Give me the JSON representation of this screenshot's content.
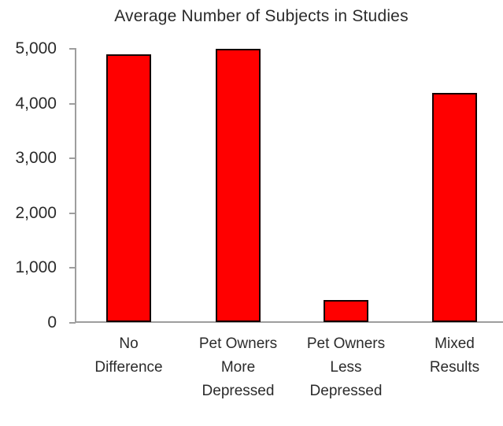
{
  "chart": {
    "title": "Average Number of Subjects in Studies"
  },
  "chart_data": {
    "type": "bar",
    "title": "Average Number of Subjects in Studies",
    "categories": [
      "No Difference",
      "Pet Owners More Depressed",
      "Pet Owners Less Depressed",
      "Mixed Results"
    ],
    "values": [
      4880,
      4980,
      400,
      4180
    ],
    "xlabel": "",
    "ylabel": "",
    "ylim": [
      0,
      5000
    ],
    "y_ticks": [
      0,
      1000,
      2000,
      3000,
      4000,
      5000
    ],
    "y_tick_labels": [
      "0",
      "1,000",
      "2,000",
      "3,000",
      "4,000",
      "5,000"
    ],
    "bar_color": "#ff0000",
    "bar_border_color": "#150000",
    "axis_color": "#9e9e9e",
    "text_color": "#2b2b2b",
    "grid": false,
    "legend": "none"
  }
}
